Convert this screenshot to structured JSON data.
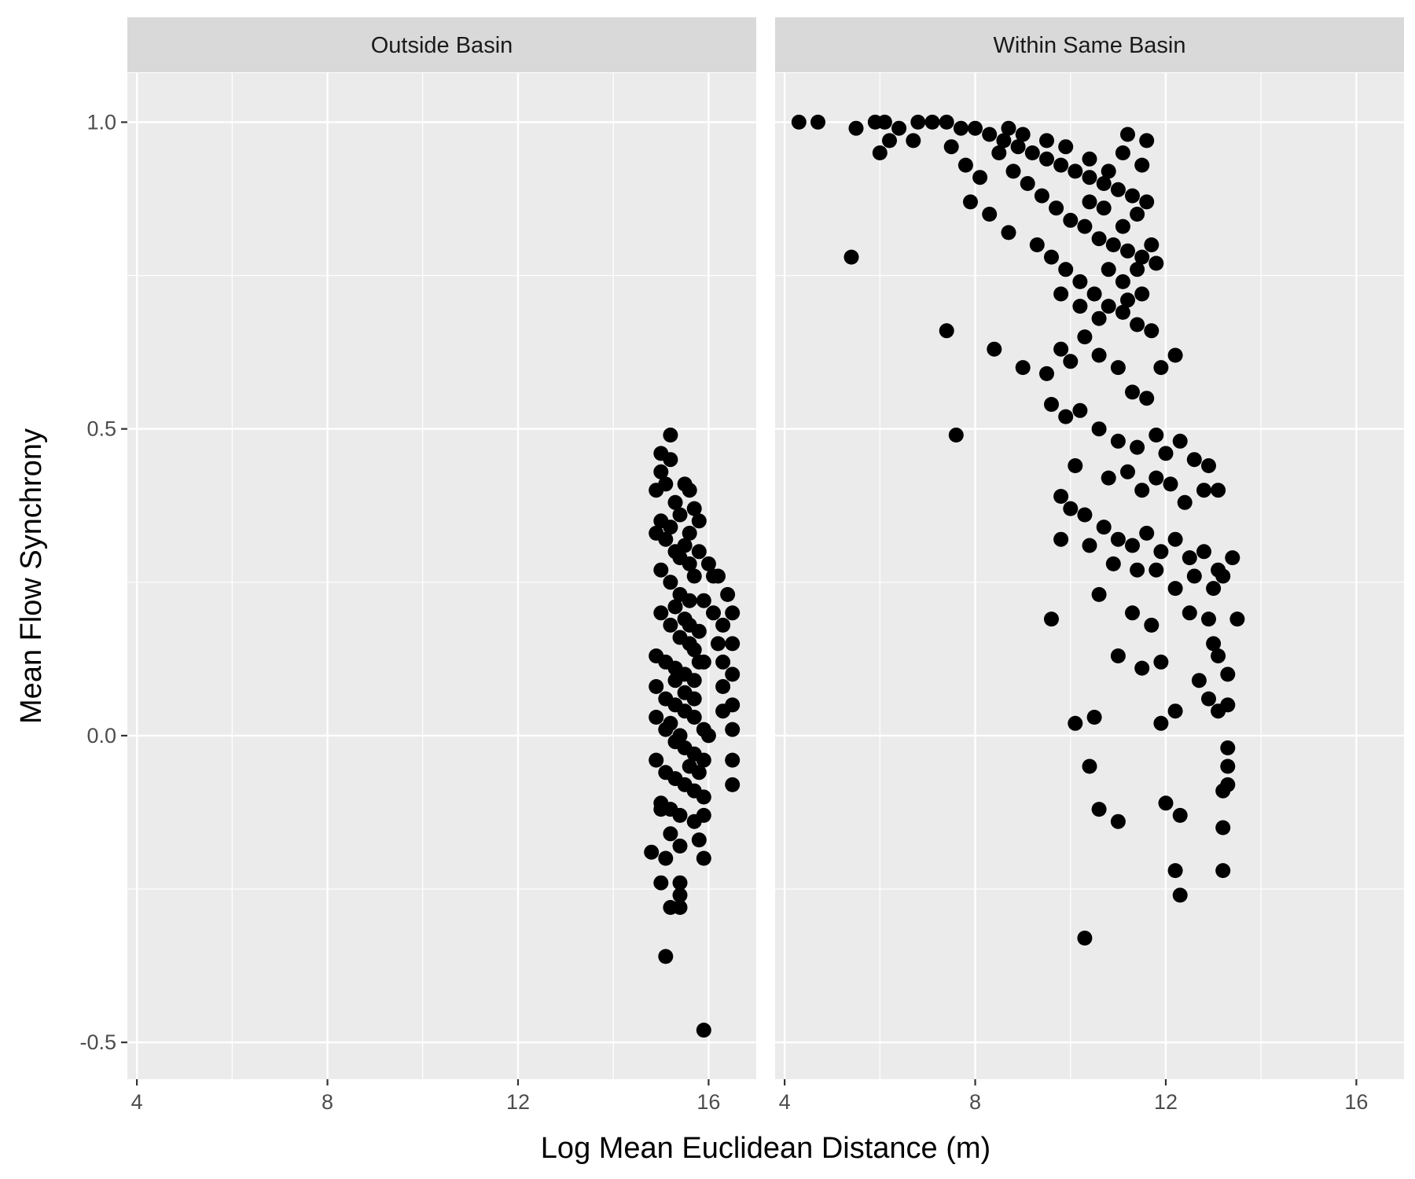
{
  "chart_data": {
    "type": "scatter",
    "title": "",
    "xlabel": "Log Mean Euclidean Distance (m)",
    "ylabel": "Mean Flow Synchrony",
    "xlim": [
      3.8,
      17.0
    ],
    "ylim": [
      -0.56,
      1.08
    ],
    "x_ticks": [
      4,
      8,
      12,
      16
    ],
    "x_tick_labels": [
      "4",
      "8",
      "12",
      "16"
    ],
    "y_ticks": [
      -0.5,
      0.0,
      0.5,
      1.0
    ],
    "y_tick_labels": [
      "-0.5",
      "0.0",
      "0.5",
      "1.0"
    ],
    "grid": true,
    "legend": "none",
    "point_color": "#000000",
    "panels": [
      {
        "name": "Outside Basin",
        "points": [
          [
            15.0,
            0.43
          ],
          [
            15.2,
            0.49
          ],
          [
            15.0,
            0.46
          ],
          [
            15.2,
            0.45
          ],
          [
            15.1,
            0.41
          ],
          [
            14.9,
            0.4
          ],
          [
            15.3,
            0.38
          ],
          [
            15.5,
            0.41
          ],
          [
            15.6,
            0.4
          ],
          [
            15.7,
            0.37
          ],
          [
            15.8,
            0.35
          ],
          [
            15.0,
            0.35
          ],
          [
            14.9,
            0.33
          ],
          [
            15.1,
            0.32
          ],
          [
            15.3,
            0.3
          ],
          [
            15.4,
            0.29
          ],
          [
            15.6,
            0.28
          ],
          [
            15.8,
            0.3
          ],
          [
            16.0,
            0.28
          ],
          [
            16.2,
            0.26
          ],
          [
            16.4,
            0.23
          ],
          [
            16.5,
            0.2
          ],
          [
            16.3,
            0.18
          ],
          [
            16.5,
            0.15
          ],
          [
            16.3,
            0.12
          ],
          [
            16.5,
            0.1
          ],
          [
            16.3,
            0.08
          ],
          [
            16.5,
            0.05
          ],
          [
            16.3,
            0.04
          ],
          [
            16.5,
            0.01
          ],
          [
            16.5,
            -0.04
          ],
          [
            16.5,
            -0.08
          ],
          [
            15.0,
            0.27
          ],
          [
            15.2,
            0.25
          ],
          [
            15.4,
            0.23
          ],
          [
            15.6,
            0.22
          ],
          [
            15.9,
            0.22
          ],
          [
            15.0,
            0.2
          ],
          [
            15.2,
            0.18
          ],
          [
            15.4,
            0.16
          ],
          [
            15.6,
            0.15
          ],
          [
            15.8,
            0.17
          ],
          [
            14.9,
            0.13
          ],
          [
            15.1,
            0.12
          ],
          [
            15.3,
            0.11
          ],
          [
            15.5,
            0.1
          ],
          [
            15.7,
            0.09
          ],
          [
            15.9,
            0.12
          ],
          [
            14.9,
            0.08
          ],
          [
            15.1,
            0.06
          ],
          [
            15.3,
            0.05
          ],
          [
            15.5,
            0.04
          ],
          [
            15.7,
            0.03
          ],
          [
            15.9,
            0.01
          ],
          [
            14.9,
            0.03
          ],
          [
            15.1,
            0.01
          ],
          [
            15.3,
            -0.01
          ],
          [
            15.5,
            -0.02
          ],
          [
            15.7,
            -0.03
          ],
          [
            15.9,
            -0.04
          ],
          [
            14.9,
            -0.04
          ],
          [
            15.1,
            -0.06
          ],
          [
            15.3,
            -0.07
          ],
          [
            15.5,
            -0.08
          ],
          [
            15.7,
            -0.09
          ],
          [
            15.9,
            -0.1
          ],
          [
            15.0,
            -0.11
          ],
          [
            15.2,
            -0.12
          ],
          [
            15.4,
            -0.13
          ],
          [
            15.7,
            -0.14
          ],
          [
            15.9,
            -0.13
          ],
          [
            15.0,
            -0.12
          ],
          [
            15.2,
            -0.16
          ],
          [
            15.4,
            -0.18
          ],
          [
            15.8,
            -0.17
          ],
          [
            15.9,
            -0.2
          ],
          [
            14.8,
            -0.19
          ],
          [
            15.1,
            -0.2
          ],
          [
            15.0,
            -0.24
          ],
          [
            15.4,
            -0.24
          ],
          [
            15.4,
            -0.26
          ],
          [
            15.2,
            -0.28
          ],
          [
            15.4,
            -0.28
          ],
          [
            15.1,
            -0.36
          ],
          [
            15.9,
            -0.48
          ],
          [
            15.6,
            0.33
          ],
          [
            15.4,
            0.36
          ],
          [
            15.2,
            0.34
          ],
          [
            15.5,
            0.31
          ],
          [
            15.7,
            0.26
          ],
          [
            15.3,
            0.21
          ],
          [
            15.5,
            0.19
          ],
          [
            15.7,
            0.14
          ],
          [
            15.3,
            0.09
          ],
          [
            15.5,
            0.07
          ],
          [
            15.7,
            0.06
          ],
          [
            15.2,
            0.02
          ],
          [
            15.4,
            0.0
          ],
          [
            15.6,
            -0.05
          ],
          [
            15.8,
            -0.06
          ],
          [
            16.0,
            0.0
          ],
          [
            16.1,
            0.2
          ],
          [
            16.1,
            0.26
          ],
          [
            15.6,
            0.18
          ],
          [
            15.8,
            0.12
          ],
          [
            16.2,
            0.15
          ]
        ]
      },
      {
        "name": "Within Same Basin",
        "points": [
          [
            4.3,
            1.0
          ],
          [
            4.7,
            1.0
          ],
          [
            5.5,
            0.99
          ],
          [
            5.9,
            1.0
          ],
          [
            6.1,
            1.0
          ],
          [
            6.4,
            0.99
          ],
          [
            6.8,
            1.0
          ],
          [
            7.1,
            1.0
          ],
          [
            7.4,
            1.0
          ],
          [
            7.7,
            0.99
          ],
          [
            8.0,
            0.99
          ],
          [
            8.3,
            0.98
          ],
          [
            8.6,
            0.97
          ],
          [
            8.9,
            0.96
          ],
          [
            9.2,
            0.95
          ],
          [
            9.5,
            0.94
          ],
          [
            9.8,
            0.93
          ],
          [
            10.1,
            0.92
          ],
          [
            10.4,
            0.91
          ],
          [
            10.7,
            0.9
          ],
          [
            11.0,
            0.89
          ],
          [
            11.3,
            0.88
          ],
          [
            11.6,
            0.87
          ],
          [
            6.0,
            0.95
          ],
          [
            6.2,
            0.97
          ],
          [
            6.7,
            0.97
          ],
          [
            7.5,
            0.96
          ],
          [
            7.8,
            0.93
          ],
          [
            8.1,
            0.91
          ],
          [
            8.5,
            0.95
          ],
          [
            8.8,
            0.92
          ],
          [
            9.1,
            0.9
          ],
          [
            9.4,
            0.88
          ],
          [
            9.7,
            0.86
          ],
          [
            10.0,
            0.84
          ],
          [
            10.3,
            0.83
          ],
          [
            10.6,
            0.81
          ],
          [
            10.9,
            0.8
          ],
          [
            11.2,
            0.79
          ],
          [
            11.5,
            0.78
          ],
          [
            11.8,
            0.77
          ],
          [
            5.4,
            0.78
          ],
          [
            7.9,
            0.87
          ],
          [
            8.3,
            0.85
          ],
          [
            8.7,
            0.82
          ],
          [
            9.3,
            0.8
          ],
          [
            9.6,
            0.78
          ],
          [
            9.9,
            0.76
          ],
          [
            10.2,
            0.74
          ],
          [
            10.5,
            0.72
          ],
          [
            10.8,
            0.7
          ],
          [
            11.1,
            0.69
          ],
          [
            11.4,
            0.67
          ],
          [
            11.7,
            0.66
          ],
          [
            9.8,
            0.72
          ],
          [
            10.2,
            0.7
          ],
          [
            10.6,
            0.68
          ],
          [
            7.4,
            0.66
          ],
          [
            8.4,
            0.63
          ],
          [
            9.0,
            0.6
          ],
          [
            9.5,
            0.59
          ],
          [
            9.8,
            0.63
          ],
          [
            10.0,
            0.61
          ],
          [
            10.3,
            0.65
          ],
          [
            10.6,
            0.62
          ],
          [
            11.0,
            0.6
          ],
          [
            11.3,
            0.56
          ],
          [
            11.6,
            0.55
          ],
          [
            11.9,
            0.6
          ],
          [
            12.2,
            0.62
          ],
          [
            9.6,
            0.54
          ],
          [
            9.9,
            0.52
          ],
          [
            10.2,
            0.53
          ],
          [
            10.6,
            0.5
          ],
          [
            11.0,
            0.48
          ],
          [
            11.4,
            0.47
          ],
          [
            11.8,
            0.49
          ],
          [
            12.0,
            0.46
          ],
          [
            12.3,
            0.48
          ],
          [
            12.6,
            0.45
          ],
          [
            12.9,
            0.44
          ],
          [
            7.6,
            0.49
          ],
          [
            10.1,
            0.44
          ],
          [
            10.8,
            0.42
          ],
          [
            11.2,
            0.43
          ],
          [
            11.5,
            0.4
          ],
          [
            11.8,
            0.42
          ],
          [
            12.1,
            0.41
          ],
          [
            12.4,
            0.38
          ],
          [
            12.8,
            0.4
          ],
          [
            13.1,
            0.4
          ],
          [
            9.8,
            0.39
          ],
          [
            10.0,
            0.37
          ],
          [
            10.3,
            0.36
          ],
          [
            10.7,
            0.34
          ],
          [
            11.0,
            0.32
          ],
          [
            11.3,
            0.31
          ],
          [
            11.6,
            0.33
          ],
          [
            11.9,
            0.3
          ],
          [
            12.2,
            0.32
          ],
          [
            12.5,
            0.29
          ],
          [
            12.8,
            0.3
          ],
          [
            13.1,
            0.27
          ],
          [
            13.4,
            0.29
          ],
          [
            9.8,
            0.32
          ],
          [
            10.4,
            0.31
          ],
          [
            10.9,
            0.28
          ],
          [
            11.4,
            0.27
          ],
          [
            11.8,
            0.27
          ],
          [
            12.2,
            0.24
          ],
          [
            12.6,
            0.26
          ],
          [
            13.0,
            0.24
          ],
          [
            13.2,
            0.26
          ],
          [
            9.6,
            0.19
          ],
          [
            10.6,
            0.23
          ],
          [
            11.3,
            0.2
          ],
          [
            11.7,
            0.18
          ],
          [
            12.5,
            0.2
          ],
          [
            12.9,
            0.19
          ],
          [
            13.0,
            0.15
          ],
          [
            13.5,
            0.19
          ],
          [
            11.0,
            0.13
          ],
          [
            11.5,
            0.11
          ],
          [
            11.9,
            0.12
          ],
          [
            12.7,
            0.09
          ],
          [
            13.1,
            0.13
          ],
          [
            13.3,
            0.1
          ],
          [
            12.9,
            0.06
          ],
          [
            13.1,
            0.04
          ],
          [
            13.3,
            0.05
          ],
          [
            10.1,
            0.02
          ],
          [
            10.5,
            0.03
          ],
          [
            11.9,
            0.02
          ],
          [
            12.2,
            0.04
          ],
          [
            13.3,
            -0.02
          ],
          [
            13.3,
            -0.05
          ],
          [
            10.4,
            -0.05
          ],
          [
            13.2,
            -0.09
          ],
          [
            13.3,
            -0.08
          ],
          [
            12.0,
            -0.11
          ],
          [
            10.6,
            -0.12
          ],
          [
            11.0,
            -0.14
          ],
          [
            12.3,
            -0.13
          ],
          [
            13.2,
            -0.15
          ],
          [
            12.2,
            -0.22
          ],
          [
            13.2,
            -0.22
          ],
          [
            12.3,
            -0.26
          ],
          [
            10.3,
            -0.33
          ],
          [
            11.2,
            0.98
          ],
          [
            11.6,
            0.97
          ],
          [
            11.1,
            0.95
          ],
          [
            11.5,
            0.93
          ],
          [
            10.8,
            0.92
          ],
          [
            10.4,
            0.94
          ],
          [
            9.9,
            0.96
          ],
          [
            9.5,
            0.97
          ],
          [
            9.0,
            0.98
          ],
          [
            8.7,
            0.99
          ],
          [
            11.4,
            0.85
          ],
          [
            11.1,
            0.83
          ],
          [
            10.7,
            0.86
          ],
          [
            10.4,
            0.87
          ],
          [
            11.7,
            0.8
          ],
          [
            11.4,
            0.76
          ],
          [
            11.1,
            0.74
          ],
          [
            10.8,
            0.76
          ],
          [
            11.5,
            0.72
          ],
          [
            11.2,
            0.71
          ]
        ]
      }
    ]
  }
}
